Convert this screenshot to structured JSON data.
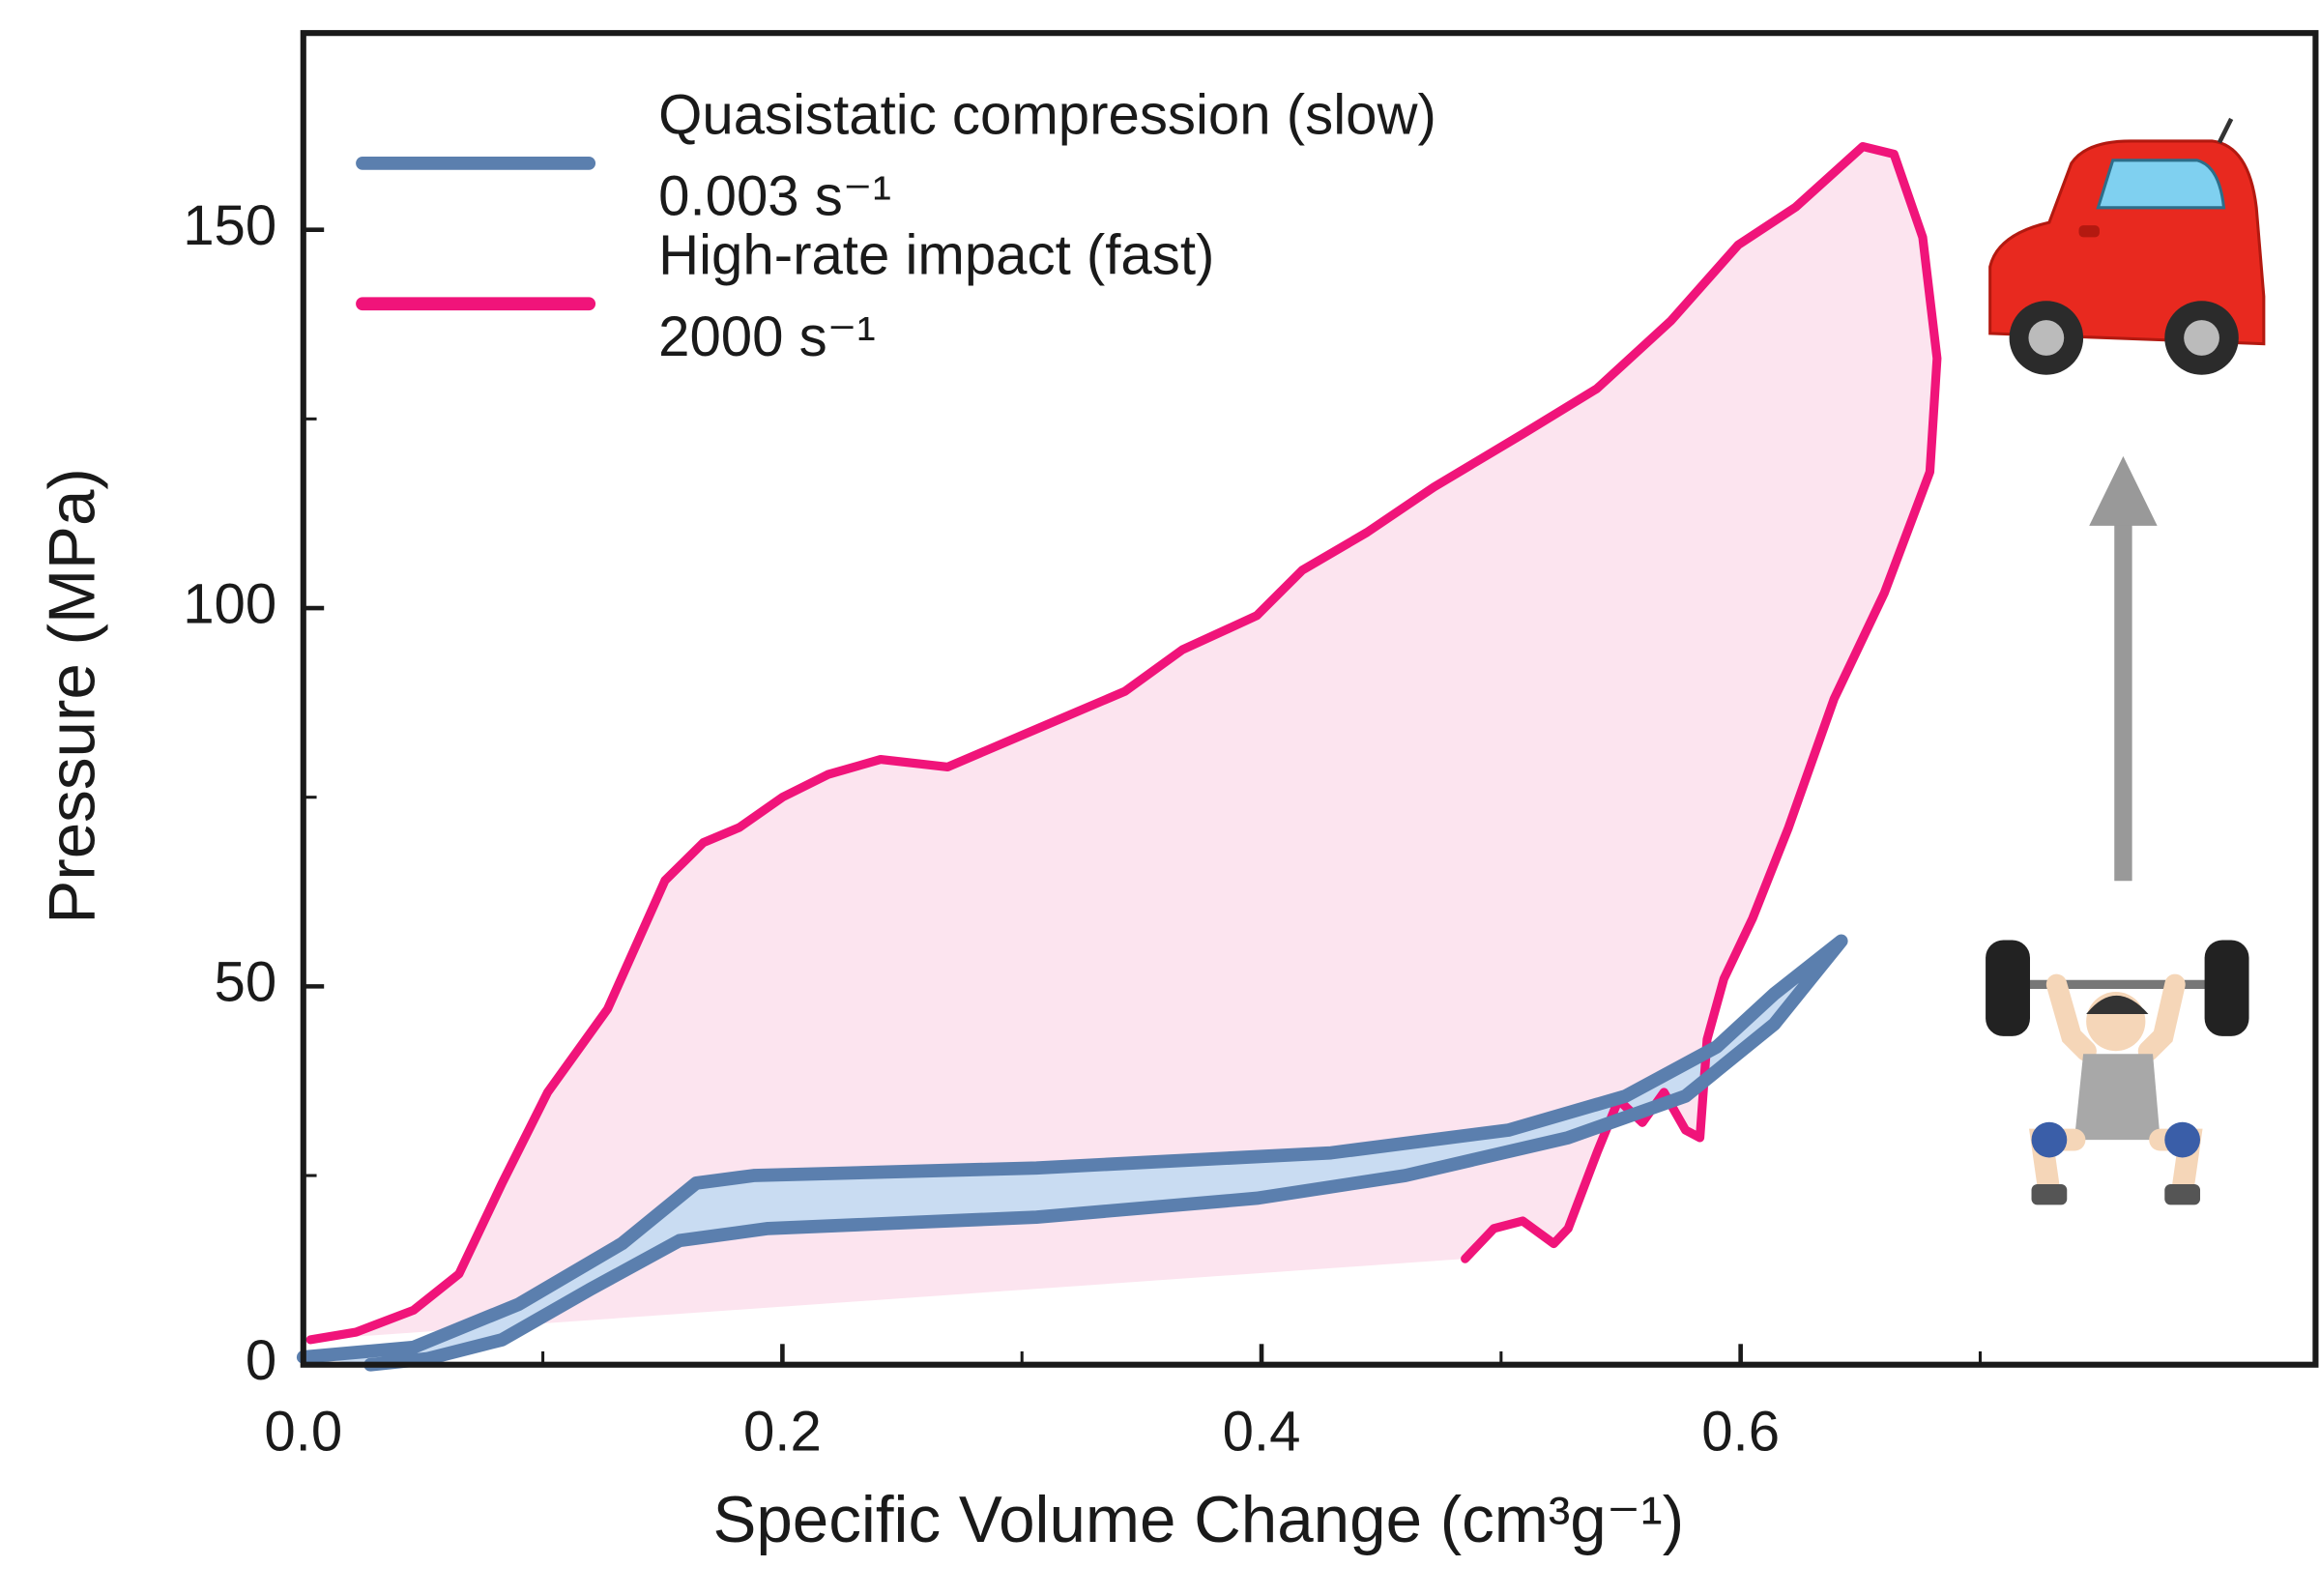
{
  "chart_data": {
    "type": "line",
    "xlabel": "Specific Volume Change (cm³g⁻¹)",
    "ylabel": "Pressure (MPa)",
    "xlim": [
      0,
      0.84
    ],
    "ylim": [
      0,
      176
    ],
    "xticks": [
      {
        "value": 0,
        "label": "0.0"
      },
      0.2,
      0.4,
      0.6
    ],
    "xminorticks": [
      0.1,
      0.3,
      0.5,
      0.7
    ],
    "yticks": [
      0,
      50,
      100,
      150
    ],
    "yminorticks": [
      25,
      75,
      125
    ],
    "series": [
      {
        "name": "Quasistatic compression (slow)",
        "rate": "0.003 s⁻¹",
        "color": "#5b7fae",
        "fill": "#c9dcf2",
        "x": [
          0,
          0.046,
          0.09,
          0.133,
          0.164,
          0.188,
          0.306,
          0.429,
          0.503,
          0.552,
          0.59,
          0.614,
          0.642,
          0.614,
          0.577,
          0.528,
          0.46,
          0.398,
          0.306,
          0.194,
          0.157,
          0.12,
          0.083,
          0.052,
          0.028
        ],
        "values": [
          1,
          2.3,
          8,
          16,
          24,
          25,
          26,
          28,
          31,
          35.5,
          42,
          49,
          56,
          45,
          35.5,
          30,
          25,
          22,
          19.5,
          18,
          16.4,
          10,
          3.3,
          0.8,
          0
        ]
      },
      {
        "name": "High-rate impact (fast)",
        "rate": "2000 s⁻¹",
        "color": "#f0147a",
        "fill": "#fce4ef",
        "x": [
          0.003,
          0.022,
          0.046,
          0.065,
          0.083,
          0.102,
          0.127,
          0.151,
          0.167,
          0.182,
          0.2,
          0.219,
          0.241,
          0.269,
          0.306,
          0.343,
          0.367,
          0.398,
          0.417,
          0.444,
          0.472,
          0.509,
          0.54,
          0.571,
          0.599,
          0.623,
          0.651,
          0.664,
          0.676,
          0.682,
          0.679,
          0.66,
          0.639,
          0.62,
          0.605,
          0.593,
          0.586,
          0.583,
          0.577,
          0.568,
          0.559,
          0.549,
          0.54,
          0.528,
          0.522,
          0.509,
          0.497,
          0.485
        ],
        "values": [
          3.3,
          4.3,
          7.2,
          12,
          24,
          36,
          47,
          64,
          69,
          71,
          75,
          78,
          80,
          79,
          84,
          89,
          94.5,
          99,
          105,
          110,
          116,
          123,
          129,
          138,
          148,
          153,
          161,
          160,
          149,
          133,
          118,
          102,
          88,
          71,
          59,
          51,
          43,
          30,
          31,
          36,
          32,
          35,
          28,
          18,
          16,
          19,
          18,
          14
        ]
      }
    ]
  }
}
